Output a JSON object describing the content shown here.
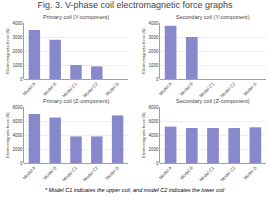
{
  "title": "Fig. 3. V-phase coil electromagnetic force graphs",
  "annotations": [
    "* Model C1 indicates the upper coil, and model C2 indicates the lower coil"
  ],
  "chart_data": [
    {
      "type": "bar",
      "title": "Primary coil (Y-component)",
      "ylabel": "Electromagnetic force (N)",
      "categories": [
        "Model A",
        "Model B",
        "Model C1",
        "Model C2",
        "Model D"
      ],
      "values": [
        3500,
        2800,
        1000,
        900,
        0
      ],
      "color": "#8888cc",
      "ylim": [
        0,
        4000
      ],
      "yticks": [
        0,
        1000,
        2000,
        3000,
        4000
      ],
      "grid": true
    },
    {
      "type": "bar",
      "title": "Secondary coil (Y-component)",
      "ylabel": "Electromagnetic force (N)",
      "categories": [
        "Model A",
        "Model B",
        "Model C1",
        "Model C2",
        "Model D"
      ],
      "values": [
        3800,
        3000,
        0,
        0,
        0
      ],
      "color": "#8888cc",
      "ylim": [
        0,
        4000
      ],
      "yticks": [
        0,
        1000,
        2000,
        3000,
        4000
      ],
      "grid": true
    },
    {
      "type": "bar",
      "title": "Primary coil (Z-component)",
      "ylabel": "Electromagnetic force (N)",
      "categories": [
        "Model A",
        "Model B",
        "Model C1",
        "Model C2",
        "Model D"
      ],
      "values": [
        7000,
        6500,
        3800,
        3800,
        6800
      ],
      "color": "#8888cc",
      "ylim": [
        0,
        8000
      ],
      "yticks": [
        0,
        2000,
        4000,
        6000,
        8000
      ],
      "grid": true
    },
    {
      "type": "bar",
      "title": "Secondary coil (Z-component)",
      "ylabel": "Electromagnetic force (N)",
      "categories": [
        "Model A",
        "Model B",
        "Model C1",
        "Model C2",
        "Model D"
      ],
      "values": [
        5200,
        5000,
        5000,
        5000,
        5100
      ],
      "color": "#8888cc",
      "ylim": [
        0,
        8000
      ],
      "yticks": [
        0,
        2000,
        4000,
        6000,
        8000
      ],
      "grid": true
    }
  ]
}
